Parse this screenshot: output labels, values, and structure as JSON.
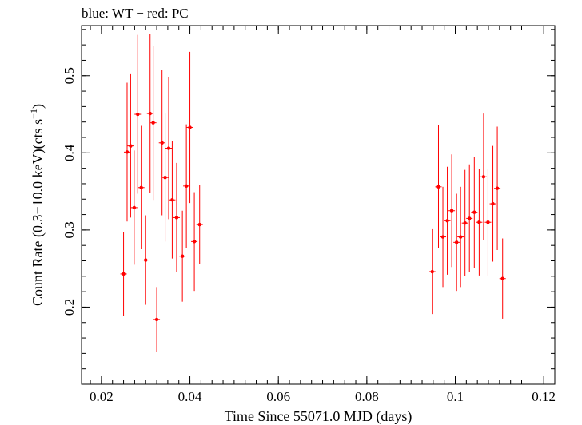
{
  "chart_data": {
    "type": "scatter",
    "title": "blue: WT − red: PC",
    "xlabel": "Time Since 55071.0 MJD (days)",
    "ylabel_main": "Count Rate (0.3−10.0 keV)(cts s",
    "ylabel_sup": "−1",
    "ylabel_end": ")",
    "xlim": [
      0.0155,
      0.1225
    ],
    "ylim": [
      0.1,
      0.565
    ],
    "xticks_major": [
      0.02,
      0.04,
      0.06,
      0.08,
      0.1,
      0.12
    ],
    "xtick_labels": [
      "0.02",
      "0.04",
      "0.06",
      "0.08",
      "0.1",
      "0.12"
    ],
    "yticks_major": [
      0.2,
      0.3,
      0.4,
      0.5
    ],
    "ytick_labels": [
      "0.2",
      "0.3",
      "0.4",
      "0.5"
    ],
    "grid": false,
    "legend": "none",
    "series": [
      {
        "color": "#ff0000",
        "points": [
          {
            "x": 0.025,
            "y": 0.243,
            "yerr_lo": 0.054,
            "yerr_hi": 0.054
          },
          {
            "x": 0.0258,
            "y": 0.401,
            "yerr_lo": 0.09,
            "yerr_hi": 0.09
          },
          {
            "x": 0.0266,
            "y": 0.409,
            "yerr_lo": 0.093,
            "yerr_hi": 0.093
          },
          {
            "x": 0.0274,
            "y": 0.329,
            "yerr_lo": 0.074,
            "yerr_hi": 0.074
          },
          {
            "x": 0.0282,
            "y": 0.45,
            "yerr_lo": 0.103,
            "yerr_hi": 0.103
          },
          {
            "x": 0.029,
            "y": 0.355,
            "yerr_lo": 0.08,
            "yerr_hi": 0.08
          },
          {
            "x": 0.03,
            "y": 0.261,
            "yerr_lo": 0.058,
            "yerr_hi": 0.058
          },
          {
            "x": 0.031,
            "y": 0.451,
            "yerr_lo": 0.103,
            "yerr_hi": 0.103
          },
          {
            "x": 0.0317,
            "y": 0.439,
            "yerr_lo": 0.1,
            "yerr_hi": 0.1
          },
          {
            "x": 0.0325,
            "y": 0.184,
            "yerr_lo": 0.042,
            "yerr_hi": 0.042
          },
          {
            "x": 0.0337,
            "y": 0.413,
            "yerr_lo": 0.094,
            "yerr_hi": 0.094
          },
          {
            "x": 0.0344,
            "y": 0.368,
            "yerr_lo": 0.083,
            "yerr_hi": 0.083
          },
          {
            "x": 0.0352,
            "y": 0.406,
            "yerr_lo": 0.092,
            "yerr_hi": 0.092
          },
          {
            "x": 0.036,
            "y": 0.339,
            "yerr_lo": 0.076,
            "yerr_hi": 0.076
          },
          {
            "x": 0.037,
            "y": 0.316,
            "yerr_lo": 0.071,
            "yerr_hi": 0.071
          },
          {
            "x": 0.0383,
            "y": 0.266,
            "yerr_lo": 0.059,
            "yerr_hi": 0.059
          },
          {
            "x": 0.0392,
            "y": 0.357,
            "yerr_lo": 0.08,
            "yerr_hi": 0.08
          },
          {
            "x": 0.04,
            "y": 0.433,
            "yerr_lo": 0.098,
            "yerr_hi": 0.098
          },
          {
            "x": 0.041,
            "y": 0.285,
            "yerr_lo": 0.064,
            "yerr_hi": 0.064
          },
          {
            "x": 0.0422,
            "y": 0.307,
            "yerr_lo": 0.051,
            "yerr_hi": 0.051
          },
          {
            "x": 0.0948,
            "y": 0.246,
            "yerr_lo": 0.055,
            "yerr_hi": 0.055
          },
          {
            "x": 0.0962,
            "y": 0.356,
            "yerr_lo": 0.08,
            "yerr_hi": 0.08
          },
          {
            "x": 0.0972,
            "y": 0.291,
            "yerr_lo": 0.065,
            "yerr_hi": 0.065
          },
          {
            "x": 0.0982,
            "y": 0.312,
            "yerr_lo": 0.07,
            "yerr_hi": 0.07
          },
          {
            "x": 0.0992,
            "y": 0.325,
            "yerr_lo": 0.073,
            "yerr_hi": 0.073
          },
          {
            "x": 0.1003,
            "y": 0.284,
            "yerr_lo": 0.063,
            "yerr_hi": 0.063
          },
          {
            "x": 0.1012,
            "y": 0.291,
            "yerr_lo": 0.065,
            "yerr_hi": 0.065
          },
          {
            "x": 0.1022,
            "y": 0.309,
            "yerr_lo": 0.069,
            "yerr_hi": 0.069
          },
          {
            "x": 0.1032,
            "y": 0.315,
            "yerr_lo": 0.07,
            "yerr_hi": 0.07
          },
          {
            "x": 0.1043,
            "y": 0.323,
            "yerr_lo": 0.072,
            "yerr_hi": 0.072
          },
          {
            "x": 0.1054,
            "y": 0.31,
            "yerr_lo": 0.069,
            "yerr_hi": 0.069
          },
          {
            "x": 0.1064,
            "y": 0.369,
            "yerr_lo": 0.082,
            "yerr_hi": 0.082
          },
          {
            "x": 0.1074,
            "y": 0.31,
            "yerr_lo": 0.069,
            "yerr_hi": 0.069
          },
          {
            "x": 0.1085,
            "y": 0.334,
            "yerr_lo": 0.075,
            "yerr_hi": 0.075
          },
          {
            "x": 0.1095,
            "y": 0.354,
            "yerr_lo": 0.08,
            "yerr_hi": 0.08
          },
          {
            "x": 0.1107,
            "y": 0.237,
            "yerr_lo": 0.052,
            "yerr_hi": 0.052
          }
        ]
      }
    ]
  }
}
